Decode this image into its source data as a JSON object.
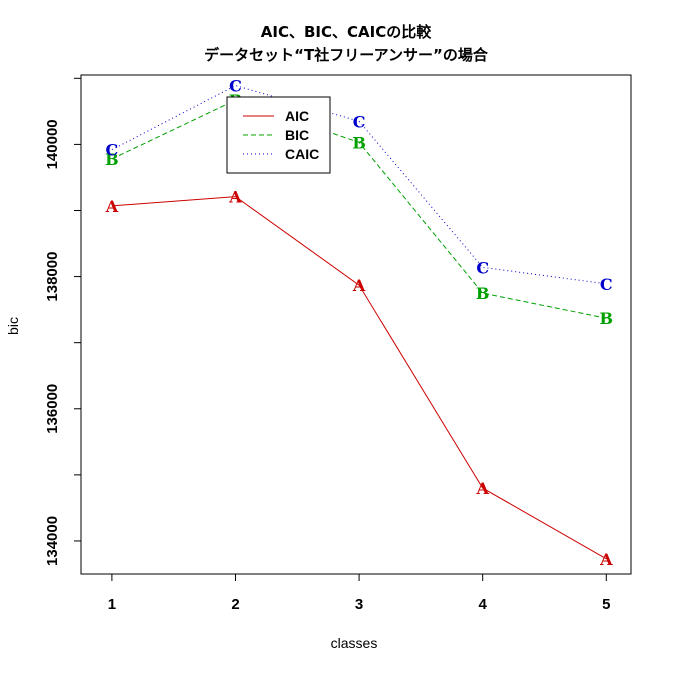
{
  "chart_data": {
    "type": "line",
    "title": "AIC、BIC、CAICの比較",
    "subtitle": "データセット“T社フリーアンサー”の場合",
    "xlabel": "classes",
    "ylabel": "bic",
    "x": [
      1,
      2,
      3,
      4,
      5
    ],
    "x_ticks": [
      "1",
      "2",
      "3",
      "4",
      "5"
    ],
    "y_ticks": [
      "134000",
      "136000",
      "138000",
      "140000"
    ],
    "y_tick_values": [
      134000,
      136000,
      138000,
      140000
    ],
    "xlim": [
      0.75,
      5.2
    ],
    "ylim": [
      133500,
      141050
    ],
    "grid": false,
    "legend": "top-center",
    "series": [
      {
        "name": "AIC",
        "label": "A",
        "values": [
          139070,
          139210,
          137870,
          134800,
          133730
        ],
        "color": "#cc0000",
        "dash": ""
      },
      {
        "name": "BIC",
        "label": "B",
        "values": [
          139780,
          140670,
          140030,
          137750,
          137370
        ],
        "color": "#00a000",
        "dash": "5,3"
      },
      {
        "name": "CAIC",
        "label": "C",
        "values": [
          139920,
          140890,
          140350,
          138140,
          137890
        ],
        "color": "#0000cc",
        "dash": "1,3"
      }
    ]
  }
}
